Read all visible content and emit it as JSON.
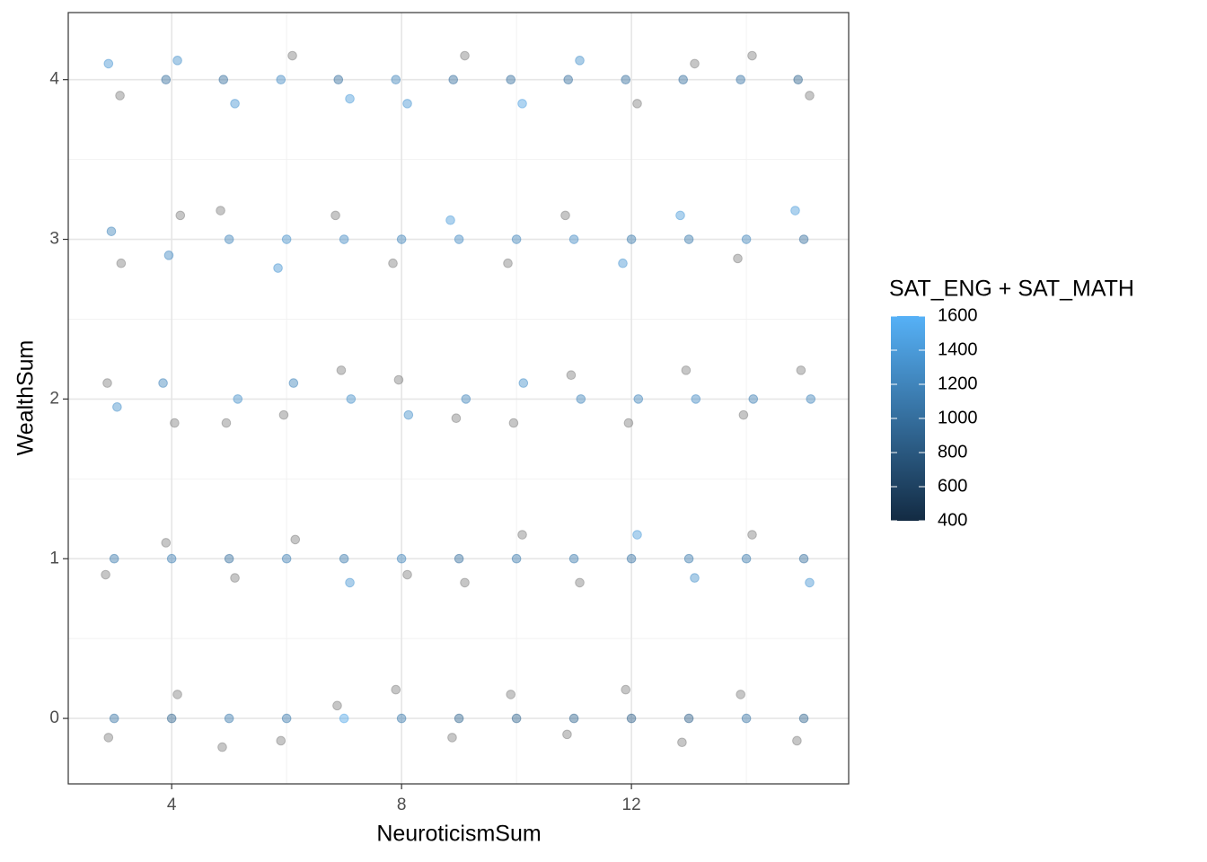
{
  "chart_data": {
    "type": "scatter",
    "x_label": "NeuroticismSum",
    "y_label": "WealthSum",
    "legend_title": "SAT_ENG + SAT_MATH",
    "xlim": [
      2.2,
      15.78
    ],
    "ylim": [
      -0.41,
      4.42
    ],
    "xticks": [
      4,
      8,
      12
    ],
    "yticks": [
      0,
      1,
      2,
      3,
      4
    ],
    "grid": true,
    "color_low": "#132B43",
    "color_high": "#56B1F7",
    "na_color": "#808080",
    "colorlim": [
      400,
      1600
    ],
    "colorticks": [
      400,
      600,
      800,
      1000,
      1200,
      1400,
      1600
    ],
    "legend_position": "right",
    "series": [
      {
        "name": "SAT_ENG + SAT_MATH",
        "x": [
          2.9,
          3.1,
          2.95,
          3.12,
          2.88,
          3.05,
          3.0,
          2.85,
          3.0,
          2.9,
          3.9,
          4.1,
          3.95,
          4.15,
          4.05,
          3.85,
          4.0,
          3.9,
          4.0,
          4.1,
          4.9,
          5.1,
          5.0,
          4.85,
          5.15,
          4.95,
          5.0,
          5.1,
          5.0,
          4.88,
          5.9,
          6.1,
          6.0,
          5.85,
          6.12,
          5.95,
          6.0,
          6.15,
          6.0,
          5.9,
          6.9,
          7.1,
          7.0,
          6.85,
          7.12,
          6.95,
          7.0,
          7.1,
          7.0,
          6.88,
          7.9,
          8.1,
          8.0,
          7.85,
          8.12,
          7.95,
          8.0,
          8.1,
          8.0,
          7.9,
          8.9,
          9.1,
          9.0,
          8.85,
          9.12,
          8.95,
          9.0,
          9.1,
          9.0,
          8.88,
          9.9,
          10.1,
          10.0,
          9.85,
          10.12,
          9.95,
          10.0,
          10.1,
          10.0,
          9.9,
          10.9,
          11.1,
          11.0,
          10.85,
          11.12,
          10.95,
          11.0,
          11.1,
          11.0,
          10.88,
          11.9,
          12.1,
          12.0,
          11.85,
          12.12,
          11.95,
          12.0,
          12.1,
          12.0,
          11.9,
          12.9,
          13.1,
          13.0,
          12.85,
          13.12,
          12.95,
          13.0,
          13.1,
          13.0,
          12.88,
          13.9,
          14.1,
          14.0,
          13.85,
          14.12,
          13.95,
          14.0,
          14.1,
          14.0,
          13.9,
          14.9,
          15.1,
          15.0,
          14.85,
          15.12,
          14.95,
          15.0,
          15.1,
          15.0,
          14.88
        ],
        "values": [
          4.1,
          3.9,
          3.05,
          2.85,
          2.1,
          1.95,
          1.0,
          0.9,
          0.0,
          -0.12,
          4.0,
          4.12,
          2.9,
          3.15,
          1.85,
          2.1,
          1.0,
          1.1,
          0.0,
          0.15,
          4.0,
          3.85,
          3.0,
          3.18,
          2.0,
          1.85,
          1.0,
          0.88,
          0.0,
          -0.18,
          4.0,
          4.15,
          3.0,
          2.82,
          2.1,
          1.9,
          1.0,
          1.12,
          0.0,
          -0.14,
          4.0,
          3.88,
          3.0,
          3.15,
          2.0,
          2.18,
          1.0,
          0.85,
          0.0,
          0.08,
          4.0,
          3.85,
          3.0,
          2.85,
          1.9,
          2.12,
          1.0,
          0.9,
          0.0,
          0.18,
          4.0,
          4.15,
          3.0,
          3.12,
          2.0,
          1.88,
          1.0,
          0.85,
          0.0,
          -0.12,
          4.0,
          3.85,
          3.0,
          2.85,
          2.1,
          1.85,
          1.0,
          1.15,
          0.0,
          0.15,
          4.0,
          4.12,
          3.0,
          3.15,
          2.0,
          2.15,
          1.0,
          0.85,
          0.0,
          -0.1,
          4.0,
          3.85,
          3.0,
          2.85,
          2.0,
          1.85,
          1.0,
          1.15,
          0.0,
          0.18,
          4.0,
          4.1,
          3.0,
          3.15,
          2.0,
          2.18,
          1.0,
          0.88,
          0.0,
          -0.15,
          4.0,
          4.15,
          3.0,
          2.88,
          2.0,
          1.9,
          1.0,
          1.15,
          0.0,
          0.15,
          4.0,
          3.9,
          3.0,
          3.18,
          2.0,
          2.18,
          1.0,
          0.85,
          0.0,
          -0.14
        ],
        "sat": [
          1350,
          null,
          1200,
          null,
          null,
          1300,
          1100,
          null,
          1050,
          null,
          1000,
          1300,
          1250,
          null,
          null,
          1200,
          1150,
          null,
          900,
          null,
          1000,
          1350,
          1200,
          null,
          1300,
          null,
          1000,
          null,
          1100,
          null,
          1250,
          null,
          1300,
          1350,
          1200,
          null,
          1150,
          null,
          1100,
          null,
          1000,
          1400,
          1250,
          null,
          1300,
          null,
          1100,
          1350,
          1500,
          null,
          1200,
          1350,
          1200,
          null,
          1300,
          null,
          1200,
          null,
          1100,
          null,
          1000,
          null,
          1250,
          1400,
          1200,
          null,
          1000,
          null,
          900,
          null,
          1000,
          1450,
          1200,
          null,
          1300,
          null,
          1100,
          null,
          900,
          null,
          1000,
          1300,
          1250,
          null,
          1200,
          null,
          1100,
          null,
          900,
          null,
          1000,
          null,
          1100,
          1350,
          1200,
          null,
          1050,
          1400,
          850,
          null,
          1000,
          null,
          1100,
          1400,
          1250,
          null,
          1100,
          1300,
          850,
          null,
          1050,
          null,
          1200,
          null,
          1150,
          null,
          1100,
          null,
          1050,
          null,
          900,
          null,
          1000,
          1400,
          1200,
          null,
          1000,
          1350,
          900,
          null
        ]
      }
    ]
  }
}
